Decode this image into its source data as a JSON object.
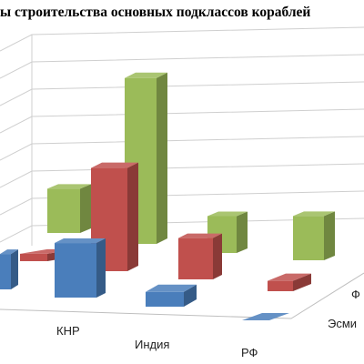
{
  "title": "ы строительства основных подклассов кораблей",
  "chart_data": {
    "type": "bar",
    "subtype": "3d-clustered",
    "title": "ы строительства основных подклассов кораблей",
    "categories": [
      "КНР",
      "Индия",
      "РФ"
    ],
    "series_labels_visible": [
      "Ф",
      "Эсми"
    ],
    "series": [
      {
        "name": "",
        "values": [
          4,
          1.5,
          0.3
        ],
        "color": "#4a7ebb"
      },
      {
        "name": "",
        "values": [
          7,
          2.5,
          1
        ],
        "color": "#c0504d"
      },
      {
        "name": "Эсми",
        "values": [
          3,
          12,
          3
        ],
        "color": "#9bbb59"
      },
      {
        "name": "Ф",
        "values": [
          0,
          2.5,
          3
        ],
        "color": "#9bbb59"
      }
    ],
    "partial_left_cluster": [
      {
        "series": "blue",
        "value": 2
      },
      {
        "series": "red",
        "value": 0.5
      }
    ],
    "gridlines": true
  }
}
